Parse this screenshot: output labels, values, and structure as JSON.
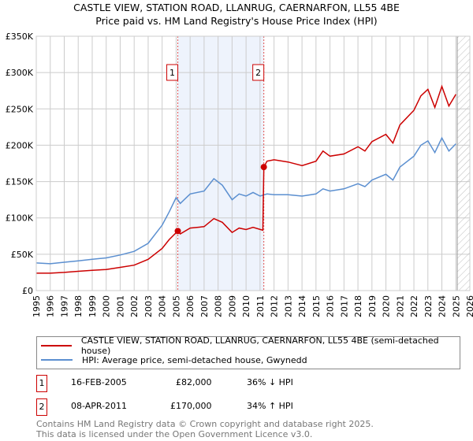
{
  "chart_data": {
    "type": "line",
    "title": "CASTLE VIEW, STATION ROAD, LLANRUG, CAERNARFON, LL55 4BE",
    "subtitle": "Price paid vs. HM Land Registry's House Price Index (HPI)",
    "xlim": [
      1995,
      2026
    ],
    "ylim": [
      0,
      350000
    ],
    "x_ticks": [
      "1995",
      "1996",
      "1997",
      "1998",
      "1999",
      "2000",
      "2001",
      "2002",
      "2003",
      "2004",
      "2005",
      "2006",
      "2007",
      "2008",
      "2009",
      "2010",
      "2011",
      "2012",
      "2013",
      "2014",
      "2015",
      "2016",
      "2017",
      "2018",
      "2019",
      "2020",
      "2021",
      "2022",
      "2023",
      "2024",
      "2025",
      "2026"
    ],
    "y_ticks": [
      {
        "v": 0,
        "label": "£0"
      },
      {
        "v": 50000,
        "label": "£50K"
      },
      {
        "v": 100000,
        "label": "£100K"
      },
      {
        "v": 150000,
        "label": "£150K"
      },
      {
        "v": 200000,
        "label": "£200K"
      },
      {
        "v": 250000,
        "label": "£250K"
      },
      {
        "v": 300000,
        "label": "£300K"
      },
      {
        "v": 350000,
        "label": "£350K"
      }
    ],
    "grid": true,
    "shaded_range": [
      2005.12,
      2011.27
    ],
    "future_hatch_from": 2025.1,
    "series": [
      {
        "name": "CASTLE VIEW, STATION ROAD, LLANRUG, CAERNARFON, LL55 4BE (semi-detached house)",
        "color": "#cc0000",
        "x": [
          1995,
          1996,
          1997,
          1998,
          1999,
          2000,
          2001,
          2002,
          2003,
          2004,
          2004.5,
          2005.12,
          2005.3,
          2006,
          2007,
          2007.7,
          2008.3,
          2009,
          2009.5,
          2010,
          2010.5,
          2011.2,
          2011.27,
          2011.5,
          2012,
          2013,
          2014,
          2015,
          2015.5,
          2016,
          2017,
          2018,
          2018.5,
          2019,
          2020,
          2020.5,
          2021,
          2022,
          2022.5,
          2023,
          2023.5,
          2024,
          2024.5,
          2025
        ],
        "y": [
          24000,
          24000,
          25000,
          26500,
          28000,
          29000,
          32000,
          35000,
          43000,
          58000,
          70000,
          82000,
          78000,
          86000,
          88000,
          99000,
          94000,
          80000,
          86000,
          84000,
          87000,
          83000,
          170000,
          178000,
          180000,
          177000,
          172000,
          178000,
          192000,
          185000,
          188000,
          198000,
          192000,
          205000,
          215000,
          203000,
          228000,
          248000,
          268000,
          277000,
          252000,
          281000,
          254000,
          270000
        ]
      },
      {
        "name": "HPI: Average price, semi-detached house, Gwynedd",
        "color": "#5b8fd0",
        "x": [
          1995,
          1996,
          1997,
          1998,
          1999,
          2000,
          2001,
          2002,
          2003,
          2004,
          2004.5,
          2005,
          2005.3,
          2006,
          2007,
          2007.7,
          2008.3,
          2009,
          2009.5,
          2010,
          2010.5,
          2011,
          2011.5,
          2012,
          2013,
          2014,
          2015,
          2015.5,
          2016,
          2017,
          2018,
          2018.5,
          2019,
          2020,
          2020.5,
          2021,
          2022,
          2022.5,
          2023,
          2023.5,
          2024,
          2024.5,
          2025
        ],
        "y": [
          38000,
          37000,
          39000,
          41000,
          43000,
          45000,
          49000,
          54000,
          65000,
          90000,
          108000,
          128000,
          120000,
          133000,
          137000,
          154000,
          145000,
          125000,
          133000,
          130000,
          135000,
          130000,
          133000,
          132000,
          132000,
          130000,
          133000,
          140000,
          137000,
          140000,
          147000,
          143000,
          152000,
          160000,
          152000,
          170000,
          185000,
          200000,
          206000,
          190000,
          210000,
          192000,
          202000
        ]
      }
    ],
    "markers": [
      {
        "label": "1",
        "x": 2005.12,
        "y": 82000
      },
      {
        "label": "2",
        "x": 2011.27,
        "y": 170000
      }
    ]
  },
  "transactions": [
    {
      "num": "1",
      "date": "16-FEB-2005",
      "price": "£82,000",
      "hpi": "36% ↓ HPI"
    },
    {
      "num": "2",
      "date": "08-APR-2011",
      "price": "£170,000",
      "hpi": "34% ↑ HPI"
    }
  ],
  "footer": {
    "line1": "Contains HM Land Registry data © Crown copyright and database right 2025.",
    "line2": "This data is licensed under the Open Government Licence v3.0."
  }
}
